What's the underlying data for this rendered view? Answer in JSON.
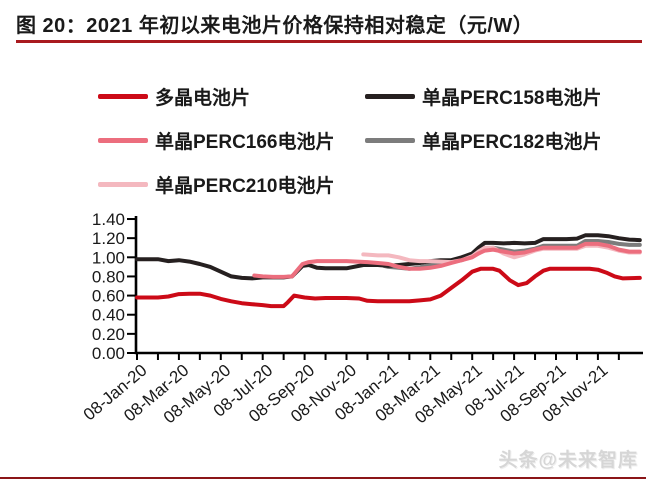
{
  "title": {
    "text": "图 20：2021 年初以来电池片价格保持相对稳定（元/W）"
  },
  "watermark": "头条@未来智库",
  "colors": {
    "title_underline": "#a91a1f",
    "bottom_rule": "#8b1518",
    "axis": "#000000",
    "text": "#1a1a1a"
  },
  "chart_data": {
    "type": "line",
    "title": "2021 年初以来电池片价格保持相对稳定",
    "unit": "元/W",
    "ylabel": "",
    "xlabel": "",
    "ylim": [
      0.0,
      1.4
    ],
    "y_ticks": [
      0.0,
      0.2,
      0.4,
      0.6,
      0.8,
      1.0,
      1.2,
      1.4
    ],
    "y_tick_format": "2-decimals",
    "grid": "off",
    "legend_position": "top",
    "x_axis_note": "x in months since 08-Jan-20; minor ticks monthly, labels every 2 months",
    "x_tick_labels": [
      "08-Jan-20",
      "08-Mar-20",
      "08-May-20",
      "08-Jul-20",
      "08-Sep-20",
      "08-Nov-20",
      "08-Jan-21",
      "08-Mar-21",
      "08-May-21",
      "08-Jul-21",
      "08-Sep-21",
      "08-Nov-21"
    ],
    "x_label_months": [
      0,
      2,
      4,
      6,
      8,
      10,
      12,
      14,
      16,
      18,
      20,
      22
    ],
    "x_minor_tick_months": [
      0,
      1,
      2,
      3,
      4,
      5,
      6,
      7,
      8,
      9,
      10,
      11,
      12,
      13,
      14,
      15,
      16,
      17,
      18,
      19,
      20,
      21,
      22,
      23
    ],
    "x_max_month": 24,
    "draw_order": [
      3,
      1,
      4,
      2,
      0
    ],
    "series": [
      {
        "key": "multi",
        "name": "多晶电池片",
        "color": "#cc0a17",
        "points": [
          [
            0,
            0.58
          ],
          [
            1,
            0.58
          ],
          [
            1.5,
            0.59
          ],
          [
            2,
            0.615
          ],
          [
            2.5,
            0.62
          ],
          [
            3,
            0.62
          ],
          [
            3.5,
            0.6
          ],
          [
            4,
            0.565
          ],
          [
            4.5,
            0.54
          ],
          [
            5,
            0.52
          ],
          [
            5.5,
            0.51
          ],
          [
            6,
            0.5
          ],
          [
            6.4,
            0.49
          ],
          [
            7,
            0.49
          ],
          [
            7.2,
            0.53
          ],
          [
            7.5,
            0.6
          ],
          [
            8,
            0.58
          ],
          [
            8.5,
            0.57
          ],
          [
            9,
            0.575
          ],
          [
            10,
            0.575
          ],
          [
            10.6,
            0.57
          ],
          [
            11,
            0.545
          ],
          [
            11.5,
            0.54
          ],
          [
            12,
            0.54
          ],
          [
            13,
            0.54
          ],
          [
            13.5,
            0.55
          ],
          [
            14,
            0.56
          ],
          [
            14.5,
            0.6
          ],
          [
            15,
            0.68
          ],
          [
            15.5,
            0.76
          ],
          [
            16,
            0.85
          ],
          [
            16.4,
            0.88
          ],
          [
            17,
            0.88
          ],
          [
            17.3,
            0.86
          ],
          [
            17.8,
            0.76
          ],
          [
            18.2,
            0.71
          ],
          [
            18.6,
            0.73
          ],
          [
            19,
            0.8
          ],
          [
            19.4,
            0.86
          ],
          [
            19.7,
            0.88
          ],
          [
            20,
            0.88
          ],
          [
            21,
            0.88
          ],
          [
            21.6,
            0.88
          ],
          [
            22,
            0.87
          ],
          [
            22.4,
            0.84
          ],
          [
            22.8,
            0.8
          ],
          [
            23.2,
            0.78
          ],
          [
            24,
            0.785
          ]
        ]
      },
      {
        "key": "perc158",
        "name": "单晶PERC158电池片",
        "color": "#262020",
        "points": [
          [
            0,
            0.98
          ],
          [
            1,
            0.98
          ],
          [
            1.5,
            0.96
          ],
          [
            2,
            0.97
          ],
          [
            2.5,
            0.955
          ],
          [
            3,
            0.93
          ],
          [
            3.5,
            0.9
          ],
          [
            4,
            0.85
          ],
          [
            4.5,
            0.8
          ],
          [
            5,
            0.785
          ],
          [
            5.5,
            0.78
          ],
          [
            6,
            0.79
          ],
          [
            7,
            0.79
          ],
          [
            7.4,
            0.8
          ],
          [
            7.9,
            0.91
          ],
          [
            8.2,
            0.92
          ],
          [
            8.6,
            0.89
          ],
          [
            9,
            0.885
          ],
          [
            10,
            0.885
          ],
          [
            10.8,
            0.92
          ],
          [
            11.5,
            0.92
          ],
          [
            12,
            0.91
          ],
          [
            12.5,
            0.92
          ],
          [
            13,
            0.93
          ],
          [
            13.5,
            0.94
          ],
          [
            14,
            0.96
          ],
          [
            14.5,
            0.97
          ],
          [
            15,
            0.97
          ],
          [
            15.5,
            1.0
          ],
          [
            16,
            1.04
          ],
          [
            16.3,
            1.1
          ],
          [
            16.6,
            1.15
          ],
          [
            17,
            1.15
          ],
          [
            17.5,
            1.145
          ],
          [
            18,
            1.15
          ],
          [
            18.5,
            1.145
          ],
          [
            19,
            1.15
          ],
          [
            19.4,
            1.19
          ],
          [
            20,
            1.19
          ],
          [
            20.5,
            1.19
          ],
          [
            21,
            1.195
          ],
          [
            21.4,
            1.23
          ],
          [
            22,
            1.23
          ],
          [
            22.5,
            1.22
          ],
          [
            23,
            1.2
          ],
          [
            23.5,
            1.185
          ],
          [
            24,
            1.18
          ]
        ]
      },
      {
        "key": "perc166",
        "name": "单晶PERC166电池片",
        "color": "#ec6e7e",
        "points": [
          [
            5.6,
            0.81
          ],
          [
            6,
            0.8
          ],
          [
            6.5,
            0.795
          ],
          [
            7,
            0.795
          ],
          [
            7.4,
            0.8
          ],
          [
            7.9,
            0.93
          ],
          [
            8.2,
            0.95
          ],
          [
            8.6,
            0.96
          ],
          [
            9,
            0.96
          ],
          [
            10,
            0.96
          ],
          [
            11,
            0.95
          ],
          [
            11.5,
            0.94
          ],
          [
            12,
            0.93
          ],
          [
            12.5,
            0.9
          ],
          [
            13,
            0.88
          ],
          [
            13.5,
            0.88
          ],
          [
            14,
            0.89
          ],
          [
            14.5,
            0.91
          ],
          [
            15,
            0.94
          ],
          [
            15.5,
            0.97
          ],
          [
            16,
            1.0
          ],
          [
            16.3,
            1.04
          ],
          [
            16.6,
            1.07
          ],
          [
            17,
            1.08
          ],
          [
            17.5,
            1.06
          ],
          [
            18,
            1.04
          ],
          [
            18.5,
            1.05
          ],
          [
            19,
            1.08
          ],
          [
            19.4,
            1.1
          ],
          [
            20,
            1.1
          ],
          [
            21,
            1.1
          ],
          [
            21.4,
            1.14
          ],
          [
            22,
            1.14
          ],
          [
            22.5,
            1.12
          ],
          [
            23,
            1.08
          ],
          [
            23.5,
            1.06
          ],
          [
            24,
            1.06
          ]
        ]
      },
      {
        "key": "perc182",
        "name": "单晶PERC182电池片",
        "color": "#7c7c7c",
        "points": [
          [
            11.8,
            0.91
          ],
          [
            12,
            0.9
          ],
          [
            12.5,
            0.89
          ],
          [
            13,
            0.88
          ],
          [
            13.5,
            0.895
          ],
          [
            14,
            0.92
          ],
          [
            14.5,
            0.93
          ],
          [
            15,
            0.95
          ],
          [
            15.5,
            0.97
          ],
          [
            16,
            1.01
          ],
          [
            16.3,
            1.06
          ],
          [
            16.6,
            1.09
          ],
          [
            17,
            1.1
          ],
          [
            17.5,
            1.08
          ],
          [
            18,
            1.06
          ],
          [
            18.5,
            1.07
          ],
          [
            19,
            1.09
          ],
          [
            19.4,
            1.12
          ],
          [
            20,
            1.12
          ],
          [
            21,
            1.12
          ],
          [
            21.4,
            1.17
          ],
          [
            22,
            1.17
          ],
          [
            22.5,
            1.16
          ],
          [
            23,
            1.14
          ],
          [
            23.5,
            1.13
          ],
          [
            24,
            1.13
          ]
        ]
      },
      {
        "key": "perc210",
        "name": "单晶PERC210电池片",
        "color": "#f4b8bf",
        "points": [
          [
            10.8,
            1.03
          ],
          [
            11.5,
            1.02
          ],
          [
            12,
            1.02
          ],
          [
            12.5,
            1.0
          ],
          [
            13,
            0.97
          ],
          [
            13.5,
            0.96
          ],
          [
            14,
            0.96
          ],
          [
            14.5,
            0.955
          ],
          [
            15,
            0.95
          ],
          [
            15.5,
            0.97
          ],
          [
            16,
            1.01
          ],
          [
            16.3,
            1.06
          ],
          [
            16.6,
            1.1
          ],
          [
            17,
            1.1
          ],
          [
            17.5,
            1.04
          ],
          [
            18,
            1.0
          ],
          [
            18.5,
            1.03
          ],
          [
            19,
            1.07
          ],
          [
            19.4,
            1.09
          ],
          [
            20,
            1.09
          ],
          [
            21,
            1.09
          ],
          [
            21.4,
            1.12
          ],
          [
            22,
            1.12
          ],
          [
            22.5,
            1.1
          ],
          [
            23,
            1.07
          ],
          [
            23.5,
            1.05
          ],
          [
            24,
            1.05
          ]
        ]
      }
    ]
  }
}
